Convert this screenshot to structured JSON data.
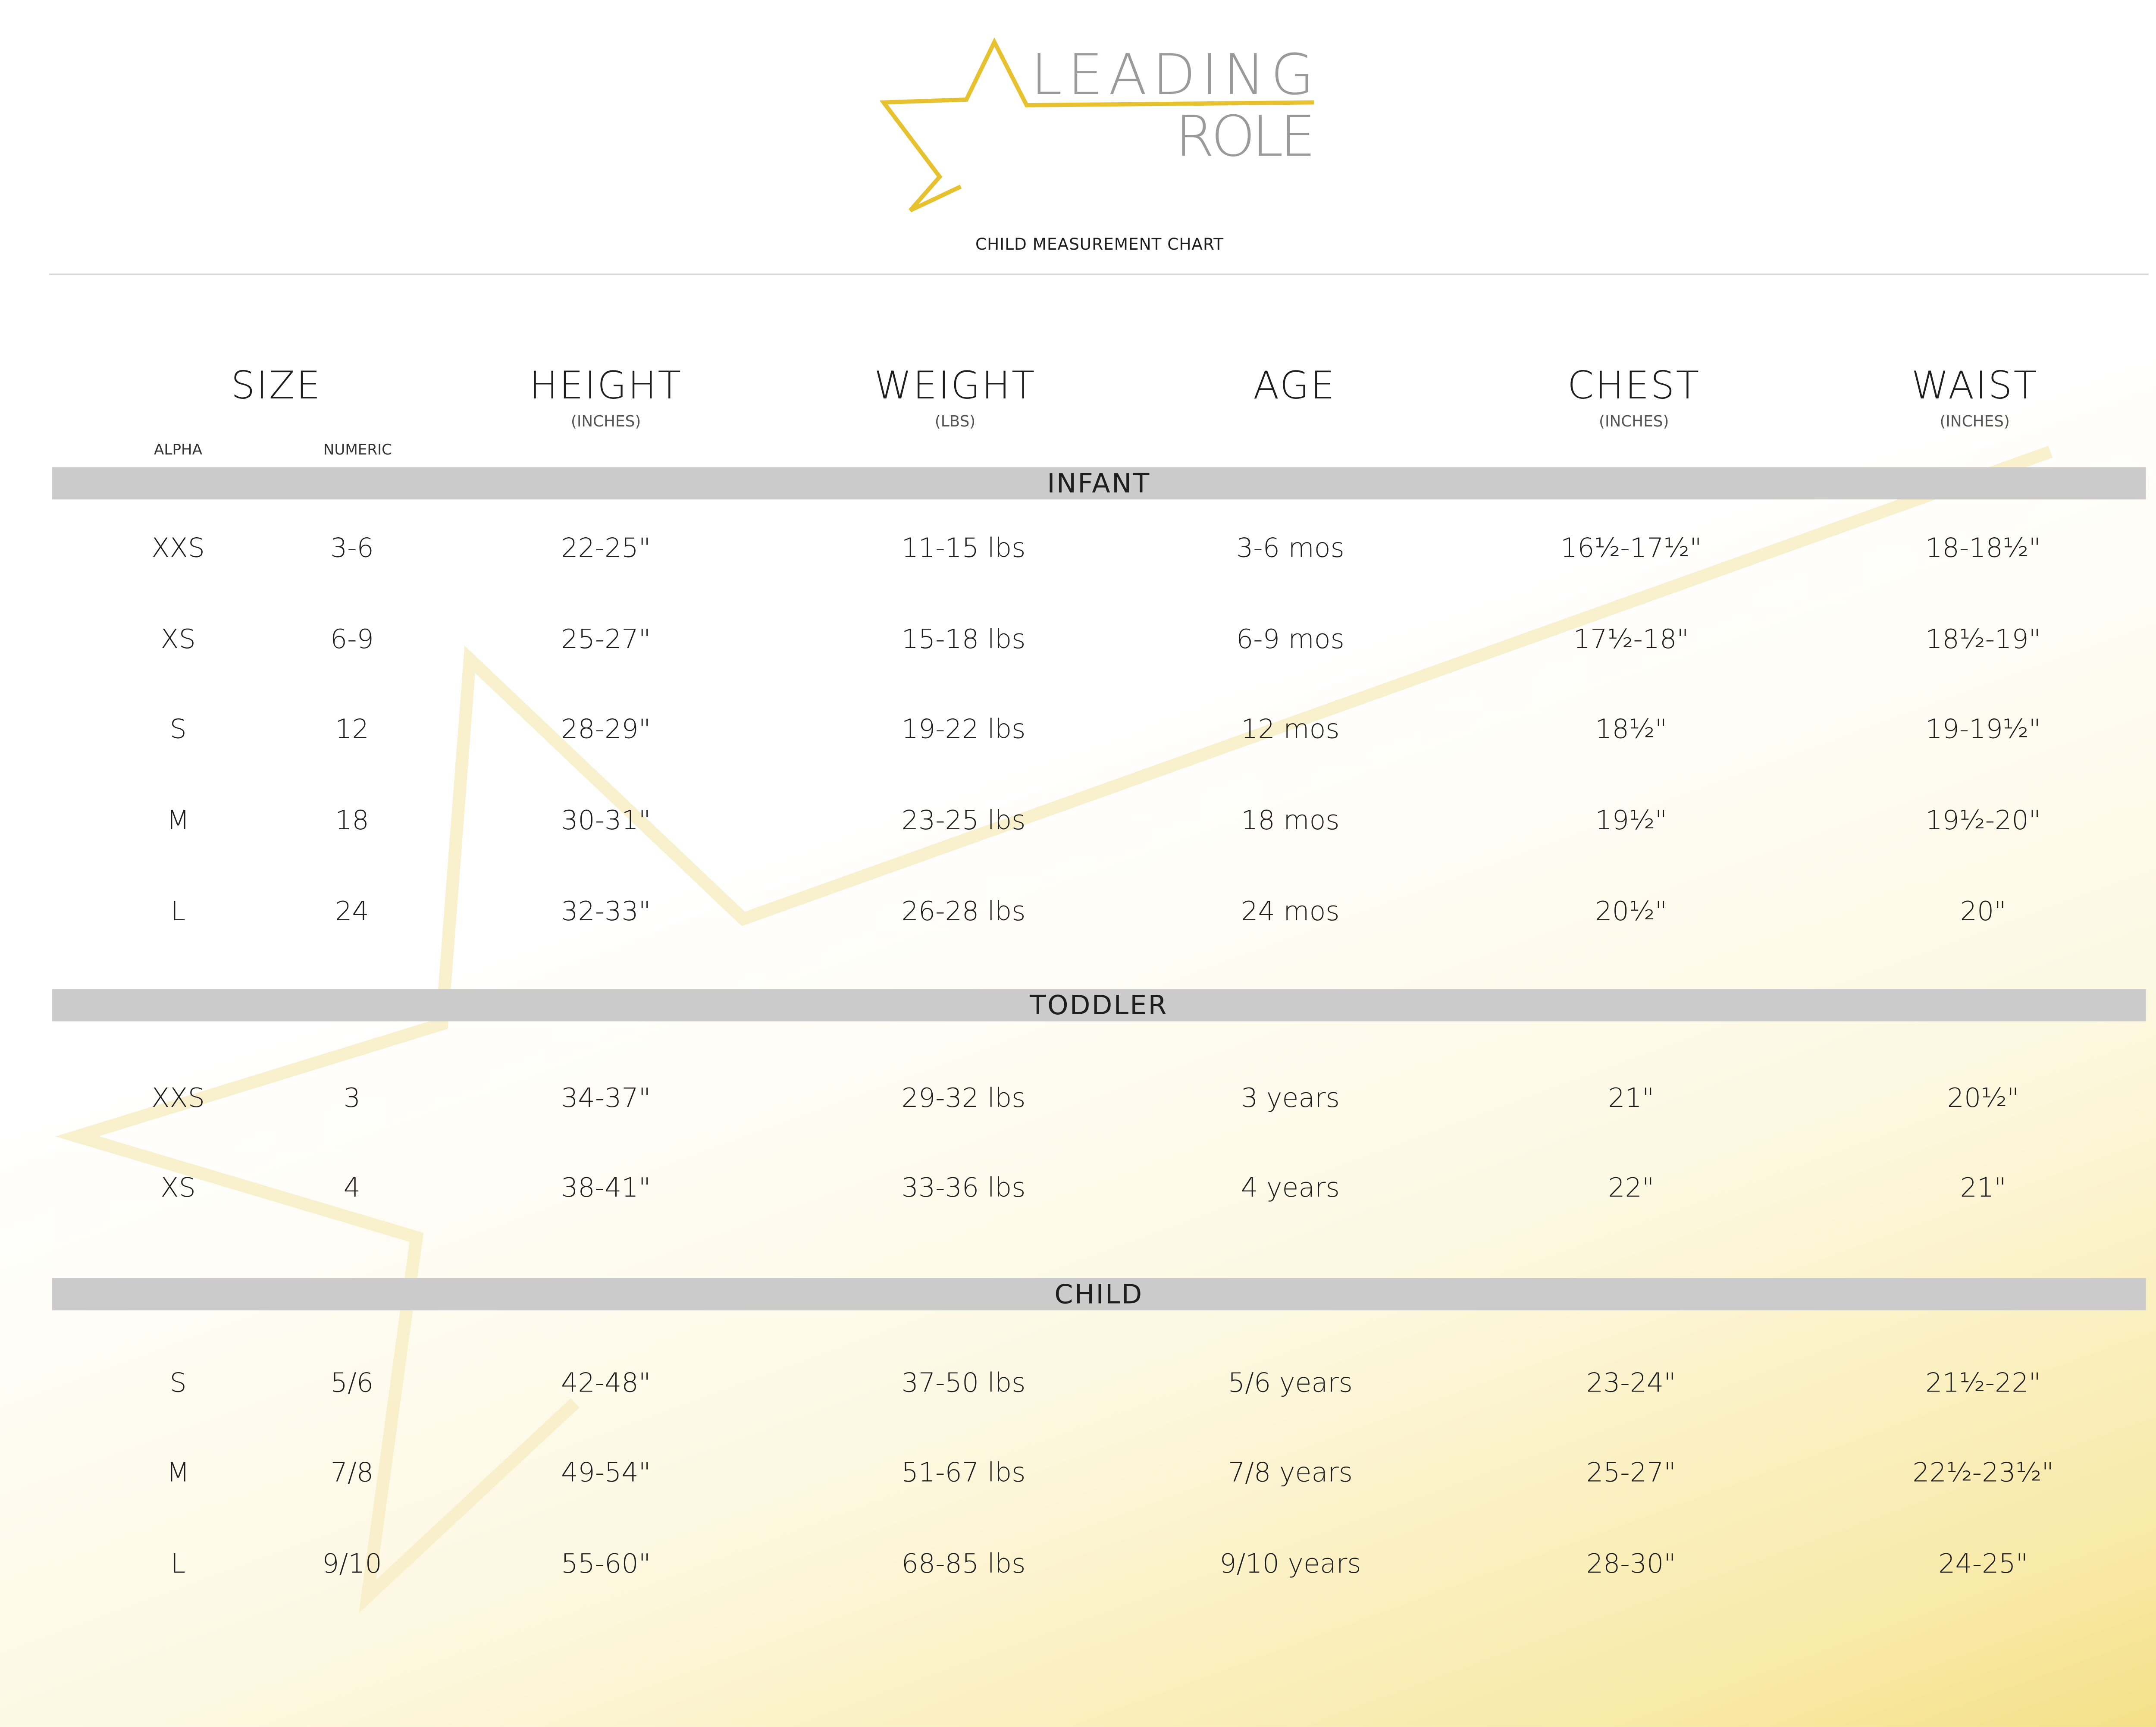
{
  "brand": {
    "line1": "LEADING",
    "line2": "ROLE",
    "accent_color": "#e6c230",
    "text_color": "#9a9a9a"
  },
  "title": "CHILD MEASUREMENT CHART",
  "headers": [
    {
      "label": "SIZE",
      "unit": ""
    },
    {
      "label": "HEIGHT",
      "unit": "(INCHES)"
    },
    {
      "label": "WEIGHT",
      "unit": "(LBS)"
    },
    {
      "label": "AGE",
      "unit": ""
    },
    {
      "label": "CHEST",
      "unit": "(INCHES)"
    },
    {
      "label": "WAIST",
      "unit": "(INCHES)"
    }
  ],
  "size_subheaders": {
    "alpha": "ALPHA",
    "numeric": "NUMERIC"
  },
  "colors": {
    "section_bar": "#cbcbcb",
    "background_gradient_end": "#f5df85"
  },
  "sections": [
    {
      "name": "INFANT",
      "rows": [
        [
          "XXS",
          "3-6",
          "22-25\"",
          "11-15 lbs",
          "3-6 mos",
          "16½-17½\"",
          "18-18½\""
        ],
        [
          "XS",
          "6-9",
          "25-27\"",
          "15-18 lbs",
          "6-9 mos",
          "17½-18\"",
          "18½-19\""
        ],
        [
          "S",
          "12",
          "28-29\"",
          "19-22 lbs",
          "12 mos",
          "18½\"",
          "19-19½\""
        ],
        [
          "M",
          "18",
          "30-31\"",
          "23-25 lbs",
          "18 mos",
          "19½\"",
          "19½-20\""
        ],
        [
          "L",
          "24",
          "32-33\"",
          "26-28 lbs",
          "24 mos",
          "20½\"",
          "20\""
        ]
      ]
    },
    {
      "name": "TODDLER",
      "rows": [
        [
          "XXS",
          "3",
          "34-37\"",
          "29-32 lbs",
          "3 years",
          "21\"",
          "20½\""
        ],
        [
          "XS",
          "4",
          "38-41\"",
          "33-36 lbs",
          "4 years",
          "22\"",
          "21\""
        ]
      ]
    },
    {
      "name": "CHILD",
      "rows": [
        [
          "S",
          "5/6",
          "42-48\"",
          "37-50 lbs",
          "5/6 years",
          "23-24\"",
          "21½-22\""
        ],
        [
          "M",
          "7/8",
          "49-54\"",
          "51-67 lbs",
          "7/8 years",
          "25-27\"",
          "22½-23½\""
        ],
        [
          "L",
          "9/10",
          "55-60\"",
          "68-85 lbs",
          "9/10 years",
          "28-30\"",
          "24-25\""
        ]
      ]
    }
  ]
}
